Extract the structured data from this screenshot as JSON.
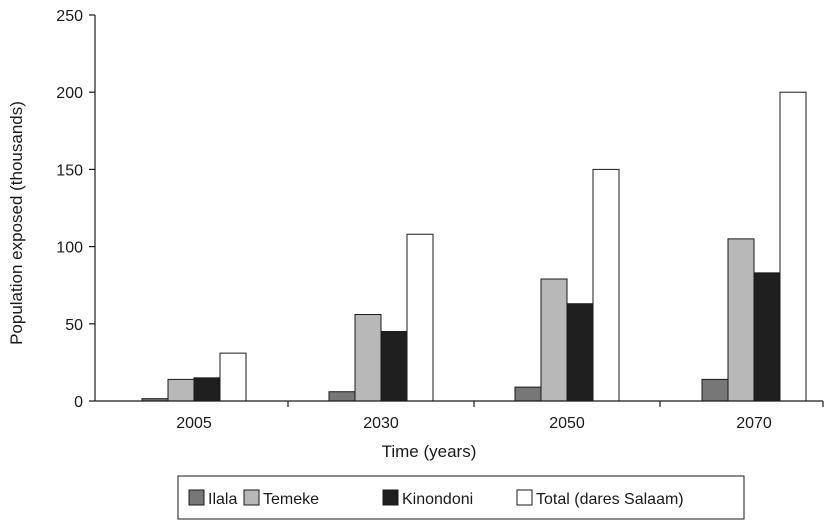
{
  "chart_data": {
    "type": "bar",
    "title": "",
    "xlabel": "Time (years)",
    "ylabel": "Population exposed (thousands)",
    "categories": [
      "2005",
      "2030",
      "2050",
      "2070"
    ],
    "ylim": [
      0,
      250
    ],
    "yticks": [
      0,
      50,
      100,
      150,
      200,
      250
    ],
    "grid": false,
    "legend_position": "bottom",
    "series": [
      {
        "name": "Ilala",
        "color": "#777777",
        "values": [
          1.5,
          6,
          9,
          14
        ]
      },
      {
        "name": "Temeke",
        "color": "#b8b8b8",
        "values": [
          14,
          56,
          79,
          105
        ]
      },
      {
        "name": "Kinondoni",
        "color": "#1f1f1f",
        "values": [
          15,
          45,
          63,
          83
        ]
      },
      {
        "name": "Total (dares Salaam)",
        "color": "#ffffff",
        "values": [
          31,
          108,
          150,
          200
        ]
      }
    ]
  }
}
